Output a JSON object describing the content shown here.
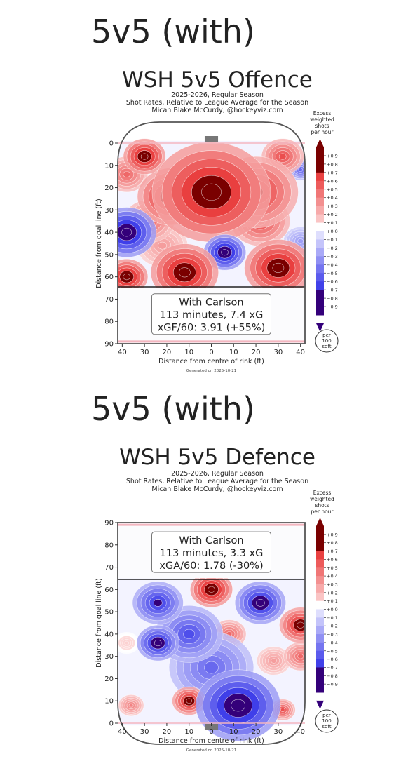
{
  "sections": [
    {
      "heading": "5v5 (with)",
      "chart_data": {
        "type": "heatmap",
        "title": "WSH 5v5 Offence",
        "subtitle_lines": [
          "2025-2026, Regular Season",
          "Shot Rates, Relative to League Average for the Season",
          "Micah Blake McCurdy, @hockeyviz.com"
        ],
        "xlabel": "Distance from centre of rink (ft)",
        "ylabel": "Distance from goal line (ft)",
        "xlim": [
          -42,
          42
        ],
        "ylim": [
          0,
          90
        ],
        "y_orientation": "goal-top",
        "x_ticks": [
          "40",
          "30",
          "20",
          "10",
          "0",
          "10",
          "20",
          "30",
          "40"
        ],
        "y_ticks": [
          "0",
          "10",
          "20",
          "30",
          "40",
          "50",
          "60",
          "70",
          "80",
          "90"
        ],
        "colorbar": {
          "title_lines": [
            "Excess",
            "weighted",
            "shots",
            "per hour"
          ],
          "ticks": [
            "+0.9",
            "+0.8",
            "+0.7",
            "+0.6",
            "+0.5",
            "+0.4",
            "+0.3",
            "+0.2",
            "+0.1",
            "+0.0",
            "−0.1",
            "−0.2",
            "−0.3",
            "−0.4",
            "−0.5",
            "−0.6",
            "−0.7",
            "−0.8",
            "−0.9"
          ]
        },
        "unit_badge": [
          "per",
          "100",
          "sqft"
        ],
        "annotation_lines": [
          "With Carlson",
          "113 minutes, 7.4 xG",
          "xGF/60: 3.91 (+55%)"
        ],
        "footer": "Generated on 2025-10-21",
        "hotspots": [
          {
            "x": -30,
            "y": 6,
            "value": 0.9,
            "spread": 5
          },
          {
            "x": 0,
            "y": 22,
            "value": 0.9,
            "spread": 14
          },
          {
            "x": -18,
            "y": 24,
            "value": 0.8,
            "spread": 8
          },
          {
            "x": 20,
            "y": 22,
            "value": 0.7,
            "spread": 10
          },
          {
            "x": 32,
            "y": 6,
            "value": 0.6,
            "spread": 5
          },
          {
            "x": -38,
            "y": 14,
            "value": 0.5,
            "spread": 5
          },
          {
            "x": -38,
            "y": 40,
            "value": -0.9,
            "spread": 7
          },
          {
            "x": 40,
            "y": 12,
            "value": -0.5,
            "spread": 3
          },
          {
            "x": -28,
            "y": 35,
            "value": 0.5,
            "spread": 6
          },
          {
            "x": 6,
            "y": 49,
            "value": -0.9,
            "spread": 5
          },
          {
            "x": 22,
            "y": 35,
            "value": 0.6,
            "spread": 7
          },
          {
            "x": -12,
            "y": 58,
            "value": 0.9,
            "spread": 8
          },
          {
            "x": 30,
            "y": 56,
            "value": 0.9,
            "spread": 8
          },
          {
            "x": -38,
            "y": 60,
            "value": 0.9,
            "spread": 5
          },
          {
            "x": 40,
            "y": 44,
            "value": -0.3,
            "spread": 4
          },
          {
            "x": -22,
            "y": 46,
            "value": 0.3,
            "spread": 6
          }
        ]
      }
    },
    {
      "heading": "5v5 (with)",
      "chart_data": {
        "type": "heatmap",
        "title": "WSH 5v5 Defence",
        "subtitle_lines": [
          "2025-2026, Regular Season",
          "Shot Rates, Relative to League Average for the Season",
          "Micah Blake McCurdy, @hockeyviz.com"
        ],
        "xlabel": "Distance from centre of rink (ft)",
        "ylabel": "Distance from goal line (ft)",
        "xlim": [
          -42,
          42
        ],
        "ylim": [
          0,
          90
        ],
        "y_orientation": "goal-bottom",
        "x_ticks": [
          "40",
          "30",
          "20",
          "10",
          "0",
          "10",
          "20",
          "30",
          "40"
        ],
        "y_ticks": [
          "90",
          "80",
          "70",
          "60",
          "50",
          "40",
          "30",
          "20",
          "10",
          "0"
        ],
        "colorbar": {
          "title_lines": [
            "Excess",
            "weighted",
            "shots",
            "per hour"
          ],
          "ticks": [
            "+0.9",
            "+0.8",
            "+0.7",
            "+0.6",
            "+0.5",
            "+0.4",
            "+0.3",
            "+0.2",
            "+0.1",
            "+0.0",
            "−0.1",
            "−0.2",
            "−0.3",
            "−0.4",
            "−0.5",
            "−0.6",
            "−0.7",
            "−0.8",
            "−0.9"
          ]
        },
        "unit_badge": [
          "per",
          "100",
          "sqft"
        ],
        "annotation_lines": [
          "With Carlson",
          "113 minutes, 3.3 xG",
          "xGA/60: 1.78 (-30%)"
        ],
        "footer": "Generated on 2025-10-21",
        "hotspots": [
          {
            "x": 0,
            "y": 60,
            "value": 0.9,
            "spread": 5
          },
          {
            "x": -24,
            "y": 54,
            "value": -0.7,
            "spread": 6
          },
          {
            "x": 22,
            "y": 54,
            "value": -0.8,
            "spread": 6
          },
          {
            "x": 8,
            "y": 40,
            "value": 0.5,
            "spread": 4
          },
          {
            "x": -10,
            "y": 40,
            "value": -0.6,
            "spread": 8
          },
          {
            "x": 40,
            "y": 44,
            "value": 0.8,
            "spread": 5
          },
          {
            "x": 40,
            "y": 30,
            "value": 0.5,
            "spread": 4
          },
          {
            "x": -38,
            "y": 36,
            "value": 0.1,
            "spread": 3
          },
          {
            "x": -24,
            "y": 36,
            "value": -0.8,
            "spread": 5
          },
          {
            "x": -36,
            "y": 8,
            "value": 0.4,
            "spread": 3
          },
          {
            "x": -10,
            "y": 10,
            "value": 0.8,
            "spread": 4
          },
          {
            "x": 12,
            "y": 8,
            "value": -0.9,
            "spread": 10
          },
          {
            "x": 32,
            "y": 6,
            "value": 0.6,
            "spread": 3
          },
          {
            "x": 28,
            "y": 28,
            "value": 0.3,
            "spread": 4
          },
          {
            "x": 0,
            "y": 25,
            "value": -0.5,
            "spread": 10
          }
        ]
      }
    }
  ]
}
